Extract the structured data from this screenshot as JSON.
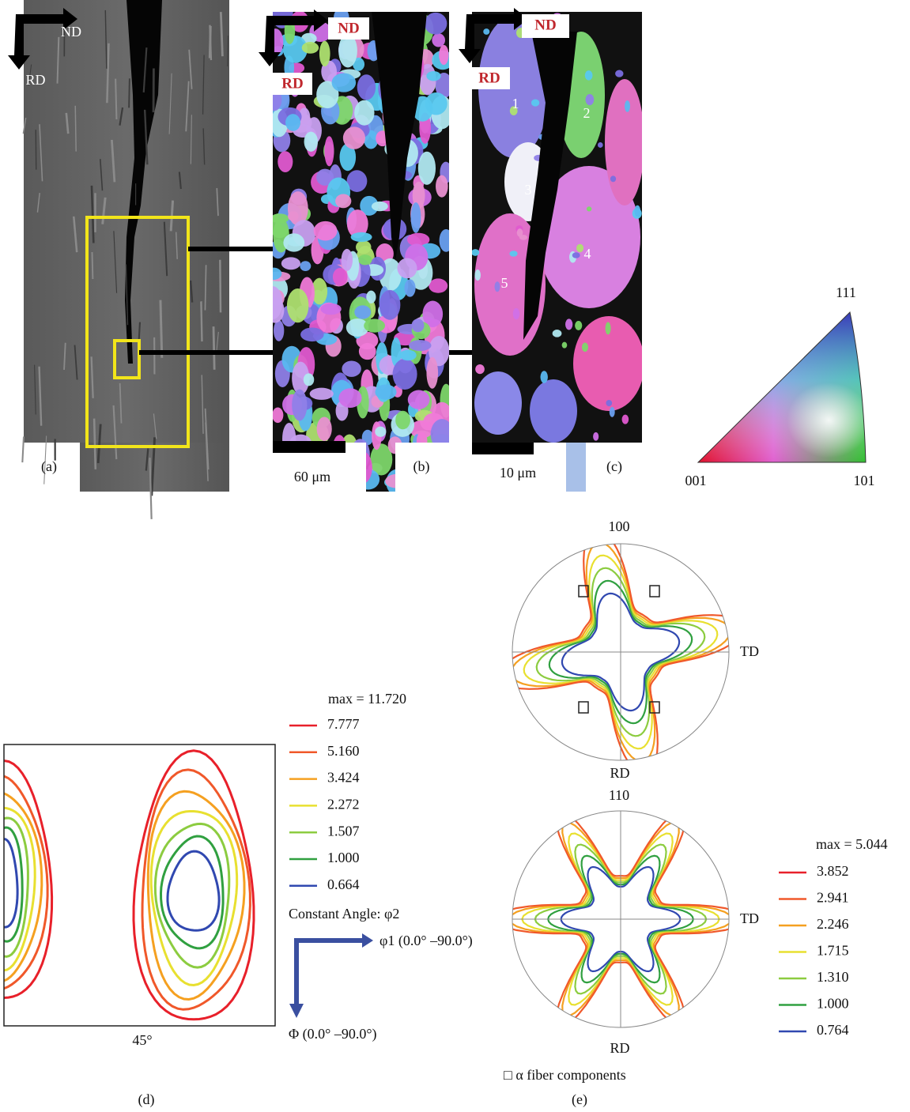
{
  "panel_a": {
    "nd": "ND",
    "rd": "RD",
    "caption": "(a)"
  },
  "panel_b": {
    "nd": "ND",
    "rd": "RD",
    "scale": "60 μm",
    "caption": "(b)"
  },
  "panel_c": {
    "nd": "ND",
    "rd": "RD",
    "grains": [
      "1",
      "2",
      "3",
      "4",
      "5"
    ],
    "scale": "10 μm",
    "caption": "(c)"
  },
  "ipf_key": {
    "top": "111",
    "left": "001",
    "right": "101"
  },
  "panel_d": {
    "max": "max = 11.720",
    "levels": [
      "7.777",
      "5.160",
      "3.424",
      "2.272",
      "1.507",
      "1.000",
      "0.664"
    ],
    "constant": "Constant Angle: φ2",
    "x_axis": "φ1 (0.0° –90.0°)",
    "y_axis": "Φ (0.0° –90.0°)",
    "section": "45°",
    "caption": "(d)"
  },
  "panel_e": {
    "pf1": {
      "top": "100",
      "right": "TD",
      "bottom": "RD"
    },
    "pf2": {
      "top": "110",
      "right": "TD",
      "bottom": "RD"
    },
    "max": "max = 5.044",
    "levels": [
      "3.852",
      "2.941",
      "2.246",
      "1.715",
      "1.310",
      "1.000",
      "0.764"
    ],
    "note": "□ α fiber components",
    "caption": "(e)"
  }
}
